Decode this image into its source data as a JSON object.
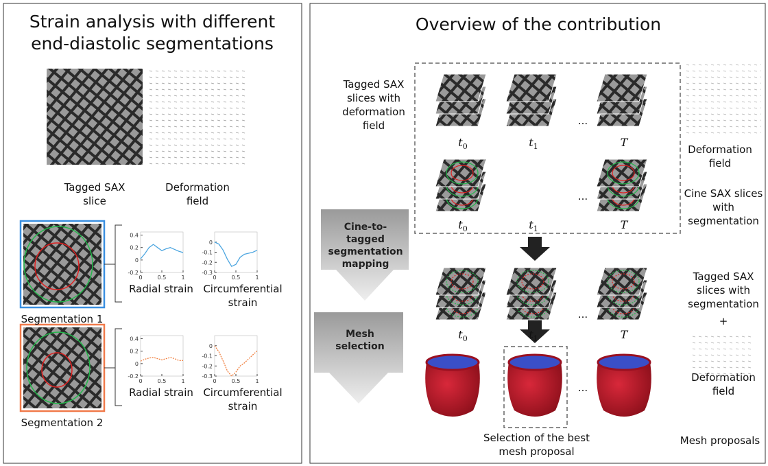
{
  "left": {
    "title": "Strain analysis with different end-diastolic segmentations",
    "tagged_label": "Tagged SAX slice",
    "deformation_label": "Deformation field",
    "segmentations": [
      {
        "name": "Segmentation 1",
        "plots": [
          {
            "type": "line",
            "label": "Radial strain",
            "color": "#4da6e0",
            "dashed": false,
            "xlim": [
              0,
              1
            ],
            "ylim": [
              -0.2,
              0.45
            ],
            "xticks": [
              0,
              0.5,
              1
            ],
            "yticks": [
              0.4,
              0.2,
              0,
              -0.2
            ],
            "x": [
              0,
              0.1,
              0.2,
              0.3,
              0.4,
              0.5,
              0.6,
              0.7,
              0.8,
              0.9,
              1
            ],
            "values": [
              0.02,
              0.1,
              0.2,
              0.25,
              0.2,
              0.15,
              0.18,
              0.2,
              0.17,
              0.14,
              0.12
            ]
          },
          {
            "type": "line",
            "label": "Circumferential strain",
            "color": "#4da6e0",
            "dashed": false,
            "xlim": [
              0,
              1
            ],
            "ylim": [
              -0.3,
              0.1
            ],
            "xticks": [
              0,
              0.5,
              1
            ],
            "yticks": [
              0,
              -0.1,
              -0.2,
              -0.3
            ],
            "x": [
              0,
              0.1,
              0.2,
              0.3,
              0.4,
              0.5,
              0.6,
              0.7,
              0.8,
              0.9,
              1
            ],
            "values": [
              0,
              -0.02,
              -0.08,
              -0.17,
              -0.24,
              -0.22,
              -0.15,
              -0.12,
              -0.11,
              -0.1,
              -0.08
            ]
          }
        ]
      },
      {
        "name": "Segmentation 2",
        "plots": [
          {
            "type": "line",
            "label": "Radial strain",
            "color": "#f08040",
            "dashed": true,
            "xlim": [
              0,
              1
            ],
            "ylim": [
              -0.2,
              0.45
            ],
            "xticks": [
              0,
              0.5,
              1
            ],
            "yticks": [
              0.4,
              0.2,
              0,
              -0.2
            ],
            "x": [
              0,
              0.1,
              0.2,
              0.3,
              0.4,
              0.5,
              0.6,
              0.7,
              0.8,
              0.9,
              1
            ],
            "values": [
              0.04,
              0.07,
              0.09,
              0.1,
              0.08,
              0.06,
              0.08,
              0.1,
              0.08,
              0.05,
              0.05
            ]
          },
          {
            "type": "line",
            "label": "Circumferential strain",
            "color": "#f08040",
            "dashed": true,
            "xlim": [
              0,
              1
            ],
            "ylim": [
              -0.3,
              0.1
            ],
            "xticks": [
              0,
              0.5,
              1
            ],
            "yticks": [
              0,
              -0.1,
              -0.2,
              -0.3
            ],
            "x": [
              0,
              0.1,
              0.2,
              0.3,
              0.4,
              0.5,
              0.6,
              0.7,
              0.8,
              0.9,
              1
            ],
            "values": [
              0,
              -0.06,
              -0.15,
              -0.25,
              -0.3,
              -0.26,
              -0.2,
              -0.17,
              -0.13,
              -0.09,
              -0.05
            ]
          }
        ]
      }
    ]
  },
  "right": {
    "title": "Overview of the contribution",
    "tagged_deformation_label": "Tagged SAX slices with deformation field",
    "deformation_label_1": "Deformation field",
    "cine_label": "Cine SAX slices with segmentation",
    "tagged_segmentation_label": "Tagged SAX slices with segmentation",
    "plus": "+",
    "deformation_label_2": "Deformation field",
    "mesh_proposals_label": "Mesh proposals",
    "best_label": "Selection of the best mesh proposal",
    "step_1": "Cine-to-tagged segmentation mapping",
    "step_2": "Mesh selection",
    "ellipsis": "...",
    "times": [
      {
        "base": "t",
        "sub": "0"
      },
      {
        "base": "t",
        "sub": "1"
      },
      {
        "base": "T",
        "sub": ""
      }
    ]
  }
}
